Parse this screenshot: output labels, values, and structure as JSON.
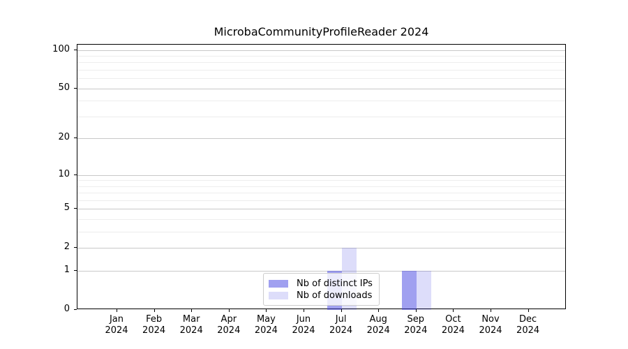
{
  "title": "MicrobaCommunityProfileReader 2024",
  "chart_data": {
    "type": "bar",
    "title": "MicrobaCommunityProfileReader 2024",
    "categories": [
      "Jan",
      "Feb",
      "Mar",
      "Apr",
      "May",
      "Jun",
      "Jul",
      "Aug",
      "Sep",
      "Oct",
      "Nov",
      "Dec"
    ],
    "x_tick_year": "2024",
    "series": [
      {
        "name": "Nb of distinct IPs",
        "key": "distinct-ips",
        "color": "#4141e1",
        "alpha": 0.5,
        "values": [
          0,
          0,
          0,
          0,
          0,
          0,
          1,
          0,
          1,
          0,
          0,
          0
        ]
      },
      {
        "name": "Nb of downloads",
        "key": "downloads",
        "color": "#4141e1",
        "alpha": 0.18,
        "values": [
          0,
          0,
          0,
          0,
          0,
          0,
          2,
          0,
          1,
          0,
          0,
          0
        ]
      }
    ],
    "yscale": "log1p",
    "ylim": [
      0,
      110
    ],
    "yticks": [
      0,
      1,
      2,
      5,
      10,
      20,
      50,
      100
    ],
    "yticks_minor": [
      3,
      4,
      6,
      7,
      8,
      9,
      30,
      40,
      60,
      70,
      80,
      90
    ],
    "grid": true,
    "legend_position": "lower center",
    "colors": {
      "grid_major": "#c8c8c8",
      "grid_minor": "#ededed",
      "spine": "#000000",
      "legend_border": "#cccccc",
      "background": "#ffffff"
    }
  }
}
